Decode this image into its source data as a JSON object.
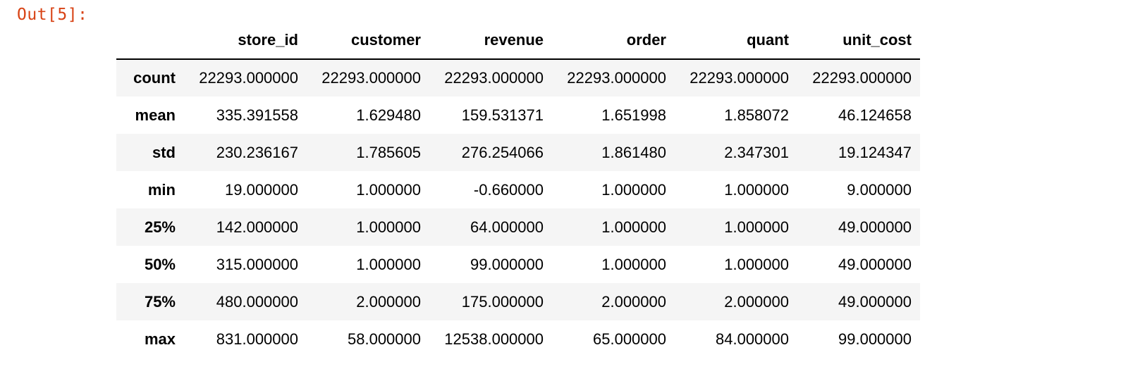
{
  "output_prompt": "Out[5]:",
  "table": {
    "columns": [
      "store_id",
      "customer",
      "revenue",
      "order",
      "quant",
      "unit_cost"
    ],
    "rows": [
      {
        "label": "count",
        "values": [
          "22293.000000",
          "22293.000000",
          "22293.000000",
          "22293.000000",
          "22293.000000",
          "22293.000000"
        ]
      },
      {
        "label": "mean",
        "values": [
          "335.391558",
          "1.629480",
          "159.531371",
          "1.651998",
          "1.858072",
          "46.124658"
        ]
      },
      {
        "label": "std",
        "values": [
          "230.236167",
          "1.785605",
          "276.254066",
          "1.861480",
          "2.347301",
          "19.124347"
        ]
      },
      {
        "label": "min",
        "values": [
          "19.000000",
          "1.000000",
          "-0.660000",
          "1.000000",
          "1.000000",
          "9.000000"
        ]
      },
      {
        "label": "25%",
        "values": [
          "142.000000",
          "1.000000",
          "64.000000",
          "1.000000",
          "1.000000",
          "49.000000"
        ]
      },
      {
        "label": "50%",
        "values": [
          "315.000000",
          "1.000000",
          "99.000000",
          "1.000000",
          "1.000000",
          "49.000000"
        ]
      },
      {
        "label": "75%",
        "values": [
          "480.000000",
          "2.000000",
          "175.000000",
          "2.000000",
          "2.000000",
          "49.000000"
        ]
      },
      {
        "label": "max",
        "values": [
          "831.000000",
          "58.000000",
          "12538.000000",
          "65.000000",
          "84.000000",
          "99.000000"
        ]
      }
    ]
  }
}
